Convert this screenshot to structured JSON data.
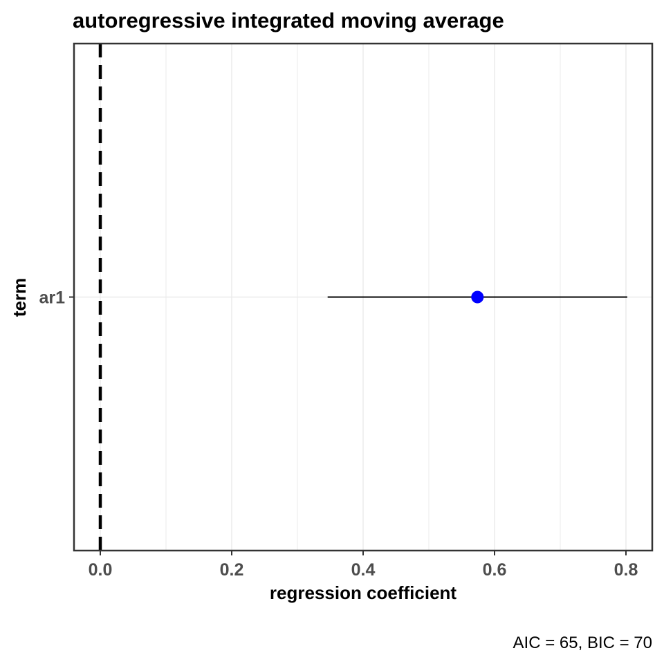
{
  "chart_data": {
    "type": "scatter",
    "title": "autoregressive integrated moving average",
    "xlabel": "regression coefficient",
    "ylabel": "term",
    "caption": "AIC = 65, BIC = 70",
    "xlim": [
      -0.04,
      0.84
    ],
    "x_ticks": [
      0.0,
      0.2,
      0.4,
      0.6,
      0.8
    ],
    "x_tick_labels": [
      "0.0",
      "0.2",
      "0.4",
      "0.6",
      "0.8"
    ],
    "categories": [
      "ar1"
    ],
    "points": [
      {
        "term": "ar1",
        "estimate": 0.574,
        "conf_low": 0.346,
        "conf_high": 0.802
      }
    ],
    "reference_line": {
      "x": 0,
      "style": "dashed"
    },
    "grid": true,
    "colors": {
      "point": "#0000ff",
      "errorbar": "#000000",
      "grid": "#ebebeb",
      "panel_border": "#333333",
      "reference_line": "#000000"
    }
  }
}
